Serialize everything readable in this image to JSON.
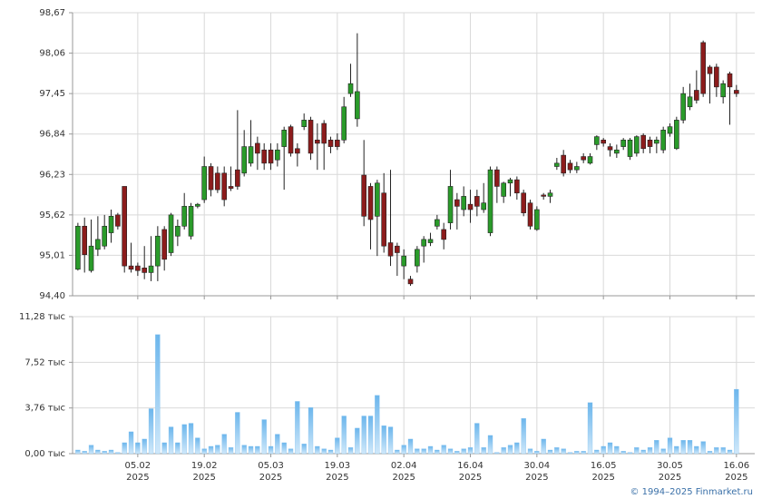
{
  "chart_data": [
    {
      "type": "candlestick",
      "xlim": [
        -0.8,
        101.75
      ],
      "xticks": [
        {
          "value": 9,
          "label": "05.02",
          "year": "2025"
        },
        {
          "value": 19,
          "label": "19.02",
          "year": "2025"
        },
        {
          "value": 29,
          "label": "05.03",
          "year": "2025"
        },
        {
          "value": 39,
          "label": "19.03",
          "year": "2025"
        },
        {
          "value": 49,
          "label": "02.04",
          "year": "2025"
        },
        {
          "value": 59,
          "label": "16.04",
          "year": "2025"
        },
        {
          "value": 69,
          "label": "30.04",
          "year": "2025"
        },
        {
          "value": 79,
          "label": "16.05",
          "year": "2025"
        },
        {
          "value": 89,
          "label": "30.05",
          "year": "2025"
        },
        {
          "value": 99,
          "label": "16.06",
          "year": "2025"
        }
      ],
      "ylim": [
        94.4,
        98.67
      ],
      "yticks": [
        {
          "value": 98.67,
          "label": "98,67"
        },
        {
          "value": 98.06,
          "label": "98,06"
        },
        {
          "value": 97.45,
          "label": "97,45"
        },
        {
          "value": 96.84,
          "label": "96,84"
        },
        {
          "value": 96.23,
          "label": "96,23"
        },
        {
          "value": 95.62,
          "label": "95,62"
        },
        {
          "value": 95.01,
          "label": "95,01"
        },
        {
          "value": 94.4,
          "label": "94,40"
        }
      ],
      "grid": true,
      "up_color": "#2a9b2a",
      "down_color": "#8c1c1c",
      "open": [
        94.8,
        95.45,
        94.78,
        95.1,
        95.15,
        95.35,
        95.62,
        96.05,
        94.85,
        94.85,
        94.82,
        94.75,
        94.85,
        95.4,
        95.05,
        95.3,
        95.45,
        95.3,
        95.75,
        95.85,
        96.35,
        96.25,
        96.25,
        96.05,
        96.3,
        96.25,
        96.4,
        96.7,
        96.6,
        96.6,
        96.45,
        96.65,
        96.95,
        96.62,
        96.95,
        97.05,
        96.75,
        97.0,
        96.75,
        96.75,
        96.75,
        97.45,
        97.07,
        96.22,
        96.05,
        95.6,
        95.95,
        95.2,
        95.15,
        94.85,
        94.65,
        94.85,
        95.15,
        95.2,
        95.45,
        95.4,
        95.5,
        95.85,
        95.7,
        95.78,
        95.9,
        95.7,
        95.35,
        96.3,
        95.9,
        96.1,
        96.15,
        95.95,
        95.8,
        95.4,
        95.92,
        95.9,
        96.35,
        96.52,
        96.4,
        96.3,
        96.5,
        96.4,
        96.68,
        96.75,
        96.65,
        96.55,
        96.65,
        96.5,
        96.55,
        96.82,
        96.75,
        96.7,
        96.6,
        96.85,
        96.62,
        97.05,
        97.25,
        97.5,
        98.22,
        97.85,
        97.85,
        97.4,
        97.75,
        97.5
      ],
      "high": [
        95.5,
        95.58,
        95.55,
        95.6,
        95.62,
        95.7,
        95.65,
        96.05,
        95.2,
        94.9,
        95.15,
        95.3,
        95.45,
        95.45,
        95.65,
        95.55,
        95.95,
        95.8,
        95.8,
        96.5,
        96.4,
        96.35,
        96.35,
        96.35,
        97.2,
        96.9,
        97.05,
        96.8,
        96.7,
        96.7,
        96.7,
        96.95,
        96.98,
        96.7,
        97.15,
        97.1,
        97.0,
        97.05,
        96.8,
        96.85,
        97.4,
        97.9,
        98.36,
        96.75,
        96.1,
        96.15,
        96.25,
        96.3,
        95.2,
        95.1,
        94.7,
        95.15,
        95.3,
        95.35,
        95.62,
        95.5,
        96.3,
        95.95,
        96.05,
        96.0,
        96.0,
        96.1,
        96.35,
        96.35,
        96.12,
        96.18,
        96.2,
        96.0,
        95.85,
        95.75,
        95.95,
        96.0,
        96.48,
        96.6,
        96.45,
        96.42,
        96.55,
        96.55,
        96.82,
        96.78,
        96.7,
        96.68,
        96.78,
        96.78,
        96.82,
        96.85,
        96.8,
        96.8,
        96.95,
        97.0,
        97.1,
        97.55,
        97.6,
        97.8,
        98.25,
        97.88,
        97.9,
        97.65,
        97.78,
        97.58
      ],
      "low": [
        94.78,
        94.75,
        94.75,
        95.0,
        95.1,
        95.2,
        95.4,
        94.75,
        94.75,
        94.7,
        94.65,
        94.62,
        94.62,
        94.78,
        95.0,
        95.15,
        95.4,
        95.25,
        95.72,
        95.8,
        95.9,
        95.95,
        95.75,
        95.98,
        96.0,
        96.2,
        96.35,
        96.3,
        96.3,
        96.3,
        96.35,
        96.0,
        96.5,
        96.35,
        96.9,
        96.45,
        96.3,
        96.3,
        96.55,
        96.6,
        96.7,
        97.4,
        96.95,
        95.45,
        95.1,
        95.0,
        95.05,
        94.85,
        94.7,
        94.65,
        94.55,
        94.75,
        94.9,
        95.15,
        95.4,
        95.1,
        95.4,
        95.4,
        95.6,
        95.5,
        95.6,
        95.65,
        95.3,
        95.8,
        95.8,
        95.9,
        95.85,
        95.6,
        95.4,
        95.38,
        95.85,
        95.8,
        96.3,
        96.2,
        96.25,
        96.25,
        96.4,
        96.38,
        96.6,
        96.65,
        96.5,
        96.48,
        96.6,
        96.45,
        96.5,
        96.55,
        96.55,
        96.55,
        96.55,
        96.8,
        96.6,
        97.0,
        97.2,
        97.3,
        97.4,
        97.3,
        97.4,
        97.3,
        96.98,
        97.4
      ],
      "close": [
        95.45,
        95.02,
        95.15,
        95.25,
        95.45,
        95.6,
        95.45,
        94.85,
        94.8,
        94.78,
        94.75,
        94.85,
        95.3,
        94.95,
        95.62,
        95.45,
        95.75,
        95.75,
        95.78,
        96.35,
        96.0,
        96.0,
        95.85,
        96.02,
        96.05,
        96.65,
        96.65,
        96.55,
        96.4,
        96.4,
        96.6,
        96.9,
        96.55,
        96.55,
        97.05,
        96.55,
        96.7,
        96.7,
        96.65,
        96.65,
        97.25,
        97.6,
        97.48,
        95.6,
        95.55,
        96.1,
        95.15,
        95.0,
        95.05,
        95.0,
        94.58,
        95.1,
        95.25,
        95.25,
        95.55,
        95.25,
        96.05,
        95.75,
        95.9,
        95.7,
        95.75,
        95.8,
        96.3,
        96.05,
        96.1,
        96.15,
        95.95,
        95.65,
        95.45,
        95.7,
        95.9,
        95.95,
        96.4,
        96.25,
        96.3,
        96.35,
        96.45,
        96.5,
        96.8,
        96.7,
        96.6,
        96.6,
        96.75,
        96.75,
        96.8,
        96.62,
        96.65,
        96.75,
        96.9,
        96.95,
        97.05,
        97.45,
        97.4,
        97.35,
        97.45,
        97.75,
        97.55,
        97.6,
        97.55,
        97.45
      ]
    },
    {
      "type": "bar",
      "xlim": [
        -0.8,
        101.75
      ],
      "ylim": [
        0,
        11.28
      ],
      "yticks": [
        {
          "value": 11.28,
          "label": "11,28 тыс"
        },
        {
          "value": 7.52,
          "label": "7,52 тыс"
        },
        {
          "value": 3.76,
          "label": "3,76 тыс"
        },
        {
          "value": 0,
          "label": "0,00 тыс"
        }
      ],
      "grid": true,
      "color": "#7fbfee",
      "values": [
        0.3,
        0.2,
        0.7,
        0.3,
        0.2,
        0.3,
        0.1,
        0.9,
        1.8,
        0.9,
        1.2,
        3.7,
        9.8,
        0.9,
        2.2,
        0.9,
        2.4,
        2.5,
        1.3,
        0.4,
        0.6,
        0.7,
        1.6,
        0.5,
        3.4,
        0.7,
        0.6,
        0.6,
        2.8,
        0.6,
        1.6,
        0.9,
        0.4,
        4.3,
        0.8,
        3.8,
        0.6,
        0.4,
        0.3,
        1.3,
        3.1,
        0.5,
        2.1,
        3.1,
        3.1,
        4.8,
        2.3,
        2.2,
        0.3,
        0.7,
        1.2,
        0.4,
        0.4,
        0.6,
        0.3,
        0.7,
        0.4,
        0.2,
        0.4,
        0.5,
        2.5,
        0.5,
        1.5,
        0.1,
        0.5,
        0.7,
        0.9,
        2.9,
        0.4,
        0.2,
        1.2,
        0.3,
        0.5,
        0.4,
        0.1,
        0.2,
        0.2,
        4.2,
        0.3,
        0.6,
        0.9,
        0.6,
        0.2,
        0.1,
        0.5,
        0.3,
        0.5,
        1.1,
        0.4,
        1.3,
        0.6,
        1.1,
        1.1,
        0.6,
        1.0,
        0.2,
        0.5,
        0.5,
        0.3,
        5.3
      ]
    }
  ],
  "footer": "© 1994–2025 Finmarket.ru"
}
